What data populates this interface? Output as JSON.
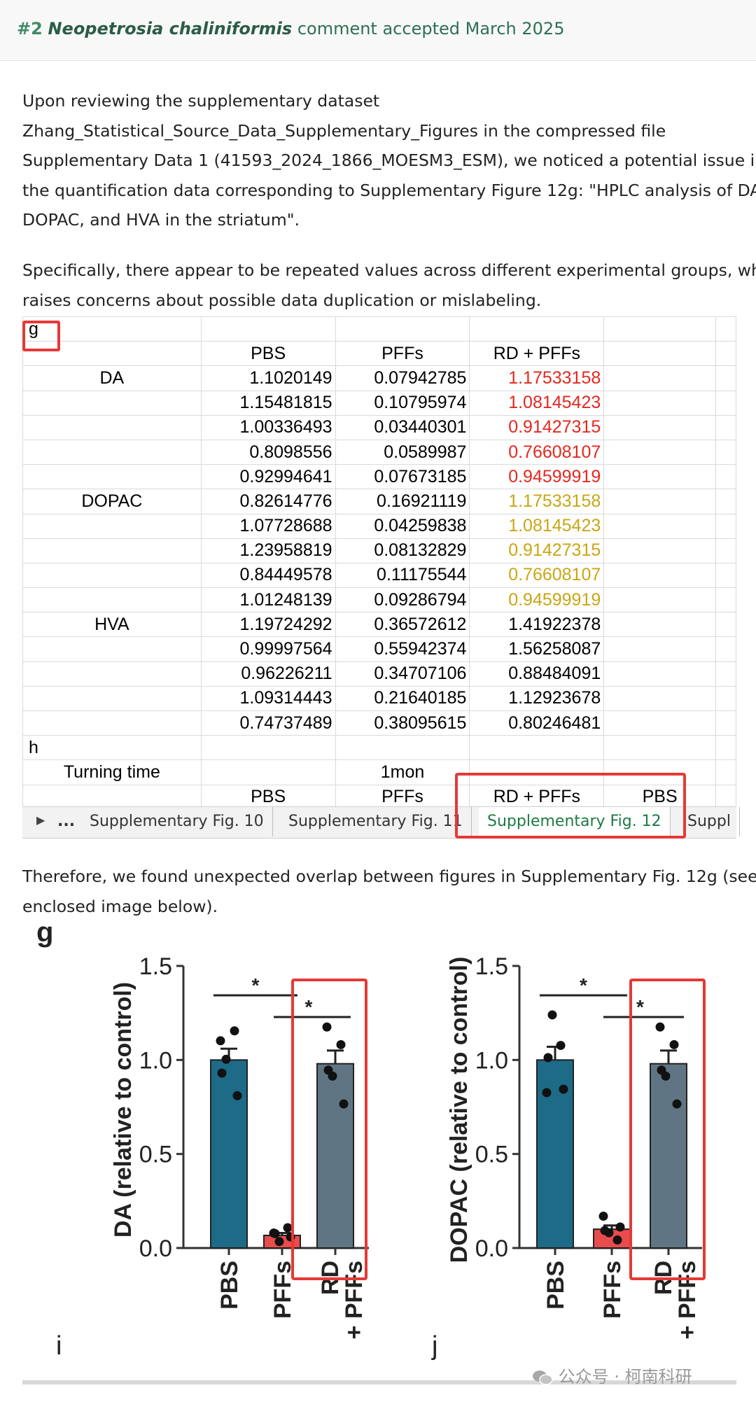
{
  "header": {
    "number": "#2",
    "species": "Neopetrosia chaliniformis",
    "rest": " comment accepted March 2025"
  },
  "paragraph1": [
    "Upon reviewing the supplementary dataset",
    "Zhang_Statistical_Source_Data_Supplementary_Figures in the compressed file",
    "Supplementary Data 1 (41593_2024_1866_MOESM3_ESM), we noticed a potential issue in",
    "the quantification data corresponding to Supplementary Figure 12g: \"HPLC analysis of DA,",
    "DOPAC, and HVA in the striatum\"."
  ],
  "paragraph2": [
    "Specifically, there appear to be repeated values across different experimental groups, which",
    "raises concerns about possible data duplication or mislabeling."
  ],
  "sheet": {
    "g_label": "g",
    "columns": [
      "PBS",
      "PFFs",
      "RD + PFFs"
    ],
    "rows": [
      {
        "group": "DA",
        "v": [
          "1.1020149",
          "0.07942785",
          "1.17533158"
        ],
        "hl": "red"
      },
      {
        "group": "",
        "v": [
          "1.15481815",
          "0.10795974",
          "1.08145423"
        ],
        "hl": "red"
      },
      {
        "group": "",
        "v": [
          "1.00336493",
          "0.03440301",
          "0.91427315"
        ],
        "hl": "red"
      },
      {
        "group": "",
        "v": [
          "0.8098556",
          "0.0589987",
          "0.76608107"
        ],
        "hl": "red"
      },
      {
        "group": "",
        "v": [
          "0.92994641",
          "0.07673185",
          "0.94599919"
        ],
        "hl": "red"
      },
      {
        "group": "DOPAC",
        "v": [
          "0.82614776",
          "0.16921119",
          "1.17533158"
        ],
        "hl": "gold"
      },
      {
        "group": "",
        "v": [
          "1.07728688",
          "0.04259838",
          "1.08145423"
        ],
        "hl": "gold"
      },
      {
        "group": "",
        "v": [
          "1.23958819",
          "0.08132829",
          "0.91427315"
        ],
        "hl": "gold"
      },
      {
        "group": "",
        "v": [
          "0.84449578",
          "0.11175544",
          "0.76608107"
        ],
        "hl": "gold"
      },
      {
        "group": "",
        "v": [
          "1.01248139",
          "0.09286794",
          "0.94599919"
        ],
        "hl": "gold"
      },
      {
        "group": "HVA",
        "v": [
          "1.19724292",
          "0.36572612",
          "1.41922378"
        ],
        "hl": ""
      },
      {
        "group": "",
        "v": [
          "0.99997564",
          "0.55942374",
          "1.56258087"
        ],
        "hl": ""
      },
      {
        "group": "",
        "v": [
          "0.96226211",
          "0.34707106",
          "0.88484091"
        ],
        "hl": ""
      },
      {
        "group": "",
        "v": [
          "1.09314443",
          "0.21640185",
          "1.12923678"
        ],
        "hl": ""
      },
      {
        "group": "",
        "v": [
          "0.74737489",
          "0.38095615",
          "0.80246481"
        ],
        "hl": ""
      }
    ],
    "h_label": "h",
    "turning_label": "Turning time",
    "turning_value": "1mon",
    "bottom_cols": [
      "PBS",
      "PFFs",
      "RD + PFFs",
      "PBS"
    ],
    "tabs": [
      "Supplementary Fig. 10",
      "Supplementary Fig. 11",
      "Supplementary Fig. 12",
      "Suppl"
    ],
    "tab_dots": "..."
  },
  "paragraph3": [
    "Therefore, we found unexpected overlap between figures in Supplementary Fig. 12g (see",
    "enclosed image below)."
  ],
  "figure": {
    "panel_g": "g",
    "panel_i": "i",
    "panel_j": "j",
    "star": "*"
  },
  "chart_data": [
    {
      "type": "bar",
      "ylabel": "DA (relative to control)",
      "ylim": [
        0,
        1.5
      ],
      "yticks": [
        "0.0",
        "0.5",
        "1.0",
        "1.5"
      ],
      "categories": [
        "PBS",
        "PFFs",
        "RD + PFFs"
      ],
      "values": [
        1.0,
        0.067,
        0.98
      ],
      "errors": [
        0.06,
        0.013,
        0.07
      ],
      "points": [
        [
          1.1020149,
          1.15481815,
          1.00336493,
          0.8098556,
          0.92994641
        ],
        [
          0.07942785,
          0.10795974,
          0.03440301,
          0.0589987,
          0.07673185
        ],
        [
          1.17533158,
          1.08145423,
          0.91427315,
          0.76608107,
          0.94599919
        ]
      ],
      "colors": [
        "#1d6b87",
        "#e84c4c",
        "#607583"
      ]
    },
    {
      "type": "bar",
      "ylabel": "DOPAC (relative to control)",
      "ylim": [
        0,
        1.5
      ],
      "yticks": [
        "0.0",
        "0.5",
        "1.0",
        "1.5"
      ],
      "categories": [
        "PBS",
        "PFFs",
        "RD + PFFs"
      ],
      "values": [
        1.0,
        0.1,
        0.98
      ],
      "errors": [
        0.07,
        0.02,
        0.07
      ],
      "points": [
        [
          0.82614776,
          1.07728688,
          1.23958819,
          0.84449578,
          1.01248139
        ],
        [
          0.16921119,
          0.04259838,
          0.08132829,
          0.11175544,
          0.09286794
        ],
        [
          1.17533158,
          1.08145423,
          0.91427315,
          0.76608107,
          0.94599919
        ]
      ],
      "colors": [
        "#1d6b87",
        "#e84c4c",
        "#607583"
      ]
    }
  ],
  "watermark": "公众号 · 柯南科研"
}
